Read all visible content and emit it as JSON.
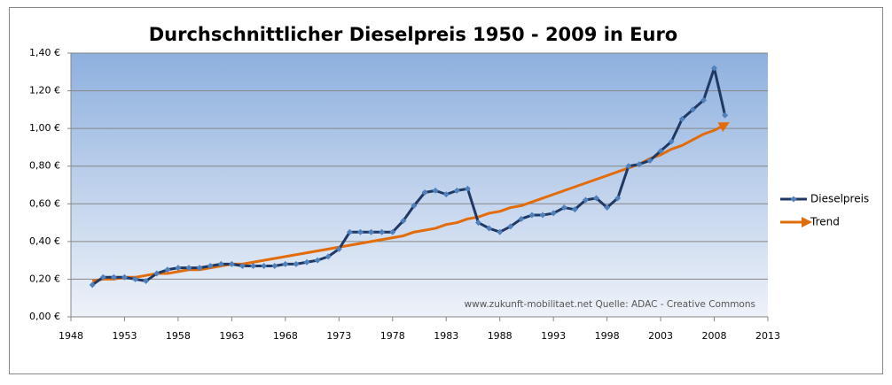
{
  "chart_data": {
    "type": "line",
    "title": "Durchschnittlicher Dieselpreis 1950 - 2009 in Euro",
    "annotation": "www.zukunft-mobilitaet.net Quelle: ADAC - Creative Commons",
    "x": [
      1950,
      1951,
      1952,
      1953,
      1954,
      1955,
      1956,
      1957,
      1958,
      1959,
      1960,
      1961,
      1962,
      1963,
      1964,
      1965,
      1966,
      1967,
      1968,
      1969,
      1970,
      1971,
      1972,
      1973,
      1974,
      1975,
      1976,
      1977,
      1978,
      1979,
      1980,
      1981,
      1982,
      1983,
      1984,
      1985,
      1986,
      1987,
      1988,
      1989,
      1990,
      1991,
      1992,
      1993,
      1994,
      1995,
      1996,
      1997,
      1998,
      1999,
      2000,
      2001,
      2002,
      2003,
      2004,
      2005,
      2006,
      2007,
      2008,
      2009
    ],
    "series": [
      {
        "name": "Dieselpreis",
        "color": "#1f3864",
        "marker": "diamond",
        "marker_color": "#4f81bd",
        "values": [
          0.17,
          0.21,
          0.21,
          0.21,
          0.2,
          0.19,
          0.23,
          0.25,
          0.26,
          0.26,
          0.26,
          0.27,
          0.28,
          0.28,
          0.27,
          0.27,
          0.27,
          0.27,
          0.28,
          0.28,
          0.29,
          0.3,
          0.32,
          0.36,
          0.45,
          0.45,
          0.45,
          0.45,
          0.45,
          0.51,
          0.59,
          0.66,
          0.67,
          0.65,
          0.67,
          0.68,
          0.5,
          0.47,
          0.45,
          0.48,
          0.52,
          0.54,
          0.54,
          0.55,
          0.58,
          0.57,
          0.62,
          0.63,
          0.58,
          0.63,
          0.8,
          0.81,
          0.83,
          0.88,
          0.93,
          1.05,
          1.1,
          1.15,
          1.32,
          1.07
        ]
      },
      {
        "name": "Trend",
        "color": "#e36c0a",
        "marker": "arrow",
        "values": [
          0.19,
          0.2,
          0.2,
          0.21,
          0.21,
          0.22,
          0.23,
          0.23,
          0.24,
          0.25,
          0.25,
          0.26,
          0.27,
          0.28,
          0.28,
          0.29,
          0.3,
          0.31,
          0.32,
          0.33,
          0.34,
          0.35,
          0.36,
          0.37,
          0.38,
          0.39,
          0.4,
          0.41,
          0.42,
          0.43,
          0.45,
          0.46,
          0.47,
          0.49,
          0.5,
          0.52,
          0.53,
          0.55,
          0.56,
          0.58,
          0.59,
          0.61,
          0.63,
          0.65,
          0.67,
          0.69,
          0.71,
          0.73,
          0.75,
          0.77,
          0.79,
          0.81,
          0.84,
          0.86,
          0.89,
          0.91,
          0.94,
          0.97,
          0.99,
          1.02
        ]
      }
    ],
    "xlim": [
      1948,
      2013
    ],
    "xticks": [
      1948,
      1953,
      1958,
      1963,
      1968,
      1973,
      1978,
      1983,
      1988,
      1993,
      1998,
      2003,
      2008,
      2013
    ],
    "ylim": [
      0,
      1.4
    ],
    "yticks": [
      {
        "value": 0,
        "label": "0,00 €"
      },
      {
        "value": 0.2,
        "label": "0,20 €"
      },
      {
        "value": 0.4,
        "label": "0,40 €"
      },
      {
        "value": 0.6,
        "label": "0,60 €"
      },
      {
        "value": 0.8,
        "label": "0,80 €"
      },
      {
        "value": 1,
        "label": "1,00 €"
      },
      {
        "value": 1.2,
        "label": "1,20 €"
      },
      {
        "value": 1.4,
        "label": "1,40 €"
      }
    ],
    "grid": true,
    "legend": "right"
  }
}
